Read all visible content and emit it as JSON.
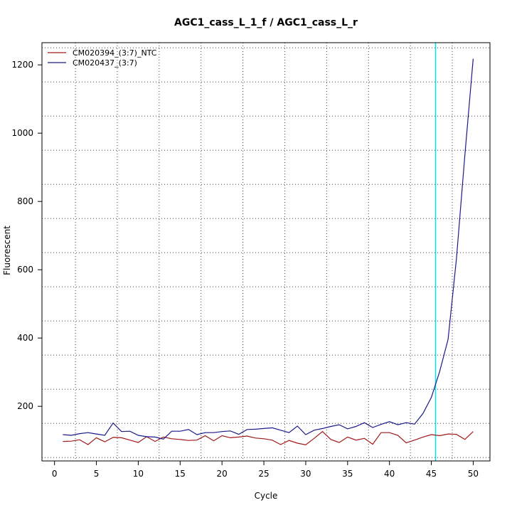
{
  "chart_data": {
    "type": "line",
    "title": "AGC1_cass_L_1_f / AGC1_cass_L_r",
    "xlabel": "Cycle",
    "ylabel": "Fluorescent",
    "xlim": [
      -1.5,
      52
    ],
    "ylim": [
      40,
      1265
    ],
    "x_ticks": [
      0,
      5,
      10,
      15,
      20,
      25,
      30,
      35,
      40,
      45,
      50
    ],
    "y_ticks": [
      200,
      400,
      600,
      800,
      1000,
      1200
    ],
    "grid": "dotted",
    "legend_position": "top-left",
    "threshold_cycle": 45.5,
    "threshold_color": "#00e5ee",
    "x": [
      1,
      2,
      3,
      4,
      5,
      6,
      7,
      8,
      9,
      10,
      11,
      12,
      13,
      14,
      15,
      16,
      17,
      18,
      19,
      20,
      21,
      22,
      23,
      24,
      25,
      26,
      27,
      28,
      29,
      30,
      31,
      32,
      33,
      34,
      35,
      36,
      37,
      38,
      39,
      40,
      41,
      42,
      43,
      44,
      45,
      46,
      47,
      48,
      49,
      50
    ],
    "series": [
      {
        "name": "CM020394_(3:7)_NTC",
        "color": "#a01818",
        "values": [
          97,
          98,
          102,
          88,
          108,
          96,
          109,
          108,
          101,
          94,
          111,
          97,
          110,
          105,
          103,
          100,
          101,
          114,
          99,
          114,
          108,
          110,
          113,
          107,
          105,
          101,
          88,
          100,
          92,
          87,
          106,
          126,
          103,
          94,
          110,
          101,
          106,
          89,
          123,
          123,
          115,
          93,
          101,
          110,
          117,
          114,
          119,
          118,
          103,
          126
        ]
      },
      {
        "name": "CM020437_(3:7)",
        "color": "#1a1a8c",
        "values": [
          117,
          115,
          120,
          123,
          119,
          115,
          151,
          126,
          127,
          115,
          111,
          110,
          104,
          127,
          127,
          132,
          117,
          123,
          123,
          126,
          128,
          118,
          132,
          133,
          135,
          137,
          130,
          123,
          142,
          117,
          130,
          135,
          141,
          146,
          134,
          141,
          152,
          138,
          147,
          155,
          146,
          152,
          148,
          179,
          226,
          302,
          396,
          633,
          935,
          1218
        ]
      }
    ]
  }
}
